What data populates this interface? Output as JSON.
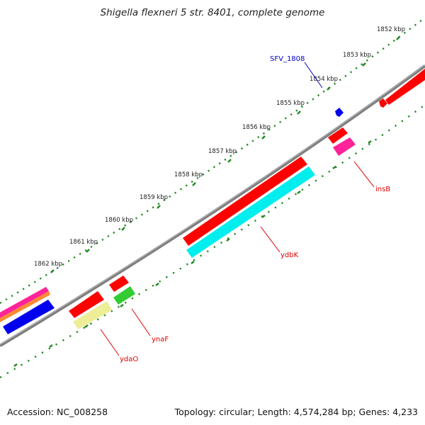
{
  "title": "Shigella flexneri 5 str. 8401, complete genome",
  "footer": {
    "accession": "Accession: NC_008258",
    "summary": "Topology: circular; Length: 4,574,284 bp; Genes: 4,233"
  },
  "ticks": [
    "1852 kbp",
    "1853 kbp",
    "1854 kbp",
    "1855 kbp",
    "1856 kbp",
    "1857 kbp",
    "1858 kbp",
    "1859 kbp",
    "1860 kbp",
    "1861 kbp",
    "1862 kbp"
  ],
  "gene_labels": {
    "sfv": "SFV_1808",
    "insb": "insB",
    "ydbk": "ydbK",
    "ynaf": "ynaF",
    "ydao": "ydaO"
  },
  "colors": {
    "backbone": "#888888",
    "tick": "#228822",
    "red": "#ff0000",
    "cyan": "#00eeee",
    "blue": "#0000ee",
    "magenta": "#ff2299",
    "green": "#33cc33",
    "khaki": "#eeee99",
    "orange": "#ff8833",
    "label_red": "#dd0000",
    "label_blue": "#0000cc"
  }
}
